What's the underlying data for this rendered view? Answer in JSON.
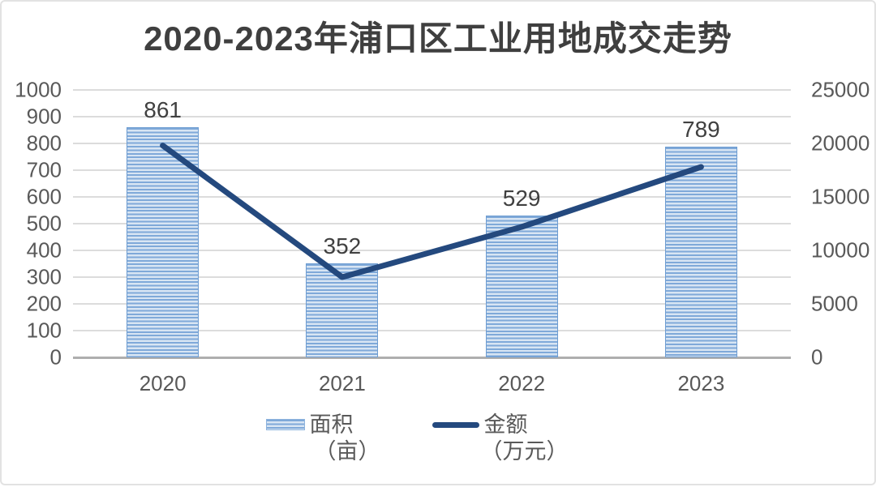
{
  "title": "2020-2023年浦口区工业用地成交走势",
  "colors": {
    "bar_stripe_dark": "#7fa9d9",
    "bar_stripe_light": "#d8e5f3",
    "bar_border": "#6d9cd1",
    "line": "#24497e",
    "gridline": "#dcdcdc",
    "axis_line": "#aeaeae",
    "tick_label": "#595959",
    "data_label": "#404040",
    "title_color": "#3f3f3f"
  },
  "chart_data": {
    "type": "combo",
    "title": "2020-2023年浦口区工业用地成交走势",
    "categories": [
      "2020",
      "2021",
      "2022",
      "2023"
    ],
    "series": [
      {
        "name": "面积（亩）",
        "type": "bar",
        "axis": "left",
        "values": [
          861,
          352,
          529,
          789
        ],
        "data_labels": [
          "861",
          "352",
          "529",
          "789"
        ]
      },
      {
        "name": "金额（万元）",
        "type": "line",
        "axis": "right",
        "values": [
          19800,
          7500,
          12200,
          17800
        ],
        "values_estimated": true
      }
    ],
    "left_axis": {
      "min": 0,
      "max": 1000,
      "step": 100,
      "ticks": [
        "0",
        "100",
        "200",
        "300",
        "400",
        "500",
        "600",
        "700",
        "800",
        "900",
        "1000"
      ]
    },
    "right_axis": {
      "min": 0,
      "max": 25000,
      "step": 5000,
      "ticks": [
        "0",
        "5000",
        "10000",
        "15000",
        "20000",
        "25000"
      ]
    },
    "grid": true,
    "legend_position": "bottom"
  },
  "legend": {
    "items": [
      {
        "label": "面积",
        "unit": "（亩）",
        "swatch": "bar"
      },
      {
        "label": "金额",
        "unit": "（万元）",
        "swatch": "line"
      }
    ]
  }
}
